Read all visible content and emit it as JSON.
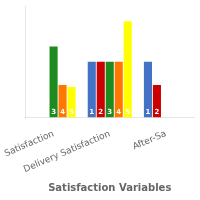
{
  "chart_data": {
    "type": "bar",
    "categories": [
      "Satisfaction",
      "Delivery Satisfaction",
      "After-Sa"
    ],
    "series": [
      {
        "name": "1",
        "color": "#4472C4",
        "values": [
          0,
          5.5,
          5.5
        ]
      },
      {
        "name": "2",
        "color": "#CC0000",
        "values": [
          0,
          5.5,
          3.2
        ]
      },
      {
        "name": "3",
        "color": "#1E8B1E",
        "values": [
          7.0,
          5.5,
          0
        ]
      },
      {
        "name": "4",
        "color": "#FF7700",
        "values": [
          3.2,
          5.5,
          0
        ]
      },
      {
        "name": "5",
        "color": "#FFFF00",
        "values": [
          3.0,
          9.5,
          0
        ]
      }
    ],
    "xlabel": "Satisfaction Variables",
    "ylim": [
      0,
      11
    ],
    "grid": false,
    "tick_labels": "x"
  }
}
